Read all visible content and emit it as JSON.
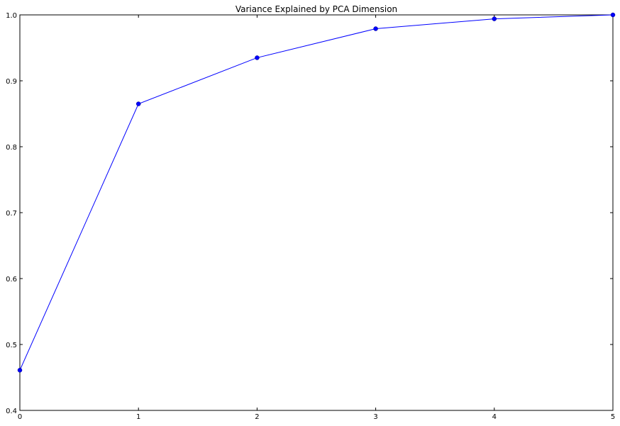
{
  "chart_data": {
    "type": "line",
    "title": "Variance Explained by PCA Dimension",
    "xlabel": "",
    "ylabel": "",
    "x": [
      0,
      1,
      2,
      3,
      4,
      5
    ],
    "series": [
      {
        "values": [
          0.461,
          0.865,
          0.935,
          0.979,
          0.994,
          1.0
        ],
        "color": "#0000ff",
        "marker": "circle"
      }
    ],
    "xlim": [
      0,
      5
    ],
    "ylim": [
      0.4,
      1.0
    ],
    "xticks": [
      "0",
      "1",
      "2",
      "3",
      "4",
      "5"
    ],
    "yticks": [
      "0.4",
      "0.5",
      "0.6",
      "0.7",
      "0.8",
      "0.9",
      "1.0"
    ],
    "grid": false,
    "legend": "none"
  }
}
